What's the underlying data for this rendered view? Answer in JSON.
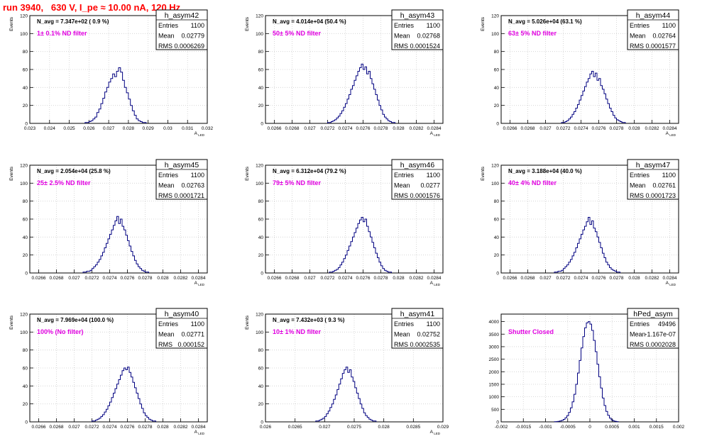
{
  "page_title": "run 3940,   630 V, I_pe ≈ 10.00 nA, 120 Hz",
  "chart_data": [
    {
      "type": "bar",
      "name": "h_asym42",
      "ylabel": "Events",
      "xlabel": "A_LED",
      "navg": "N_avg = 7.347e+02 ( 0.9 %)",
      "filter": "1± 0.1% ND filter",
      "stats": [
        [
          "Entries",
          "1100"
        ],
        [
          "Mean",
          "0.02779"
        ],
        [
          "RMS",
          "0.0006269"
        ]
      ],
      "ylim": [
        0,
        120
      ],
      "yticks": [
        0,
        20,
        40,
        60,
        80,
        100,
        120
      ],
      "xlim": [
        0.023,
        0.032
      ],
      "xticks": [
        [
          0.023,
          "0.023"
        ],
        [
          0.024,
          "0.024"
        ],
        [
          0.025,
          "0.025"
        ],
        [
          0.026,
          "0.026"
        ],
        [
          0.027,
          "0.027"
        ],
        [
          0.028,
          "0.028"
        ],
        [
          0.029,
          "0.029"
        ],
        [
          0.03,
          "0.03"
        ],
        [
          0.031,
          "0.031"
        ],
        [
          0.032,
          "0.032"
        ]
      ],
      "bins": {
        "lo": 0.0258,
        "width": 0.0001,
        "counts": [
          1,
          1,
          2,
          3,
          5,
          7,
          12,
          16,
          22,
          28,
          35,
          40,
          46,
          50,
          55,
          52,
          58,
          62,
          57,
          48,
          40,
          34,
          27,
          20,
          14,
          9,
          5,
          3,
          2,
          1,
          1
        ]
      }
    },
    {
      "type": "bar",
      "name": "h_asym43",
      "ylabel": "Events",
      "xlabel": "A_LED",
      "navg": "N_avg = 4.014e+04 (50.4 %)",
      "filter": "50± 5% ND filter",
      "stats": [
        [
          "Entries",
          "1100"
        ],
        [
          "Mean",
          "0.02768"
        ],
        [
          "RMS",
          "0.0001524"
        ]
      ],
      "ylim": [
        0,
        120
      ],
      "yticks": [
        0,
        20,
        40,
        60,
        80,
        100,
        120
      ],
      "xlim": [
        0.0265,
        0.0285
      ],
      "xticks": [
        [
          0.0266,
          "0.0266"
        ],
        [
          0.0268,
          "0.0268"
        ],
        [
          0.027,
          "0.027"
        ],
        [
          0.0272,
          "0.0272"
        ],
        [
          0.0274,
          "0.0274"
        ],
        [
          0.0276,
          "0.0276"
        ],
        [
          0.0278,
          "0.0278"
        ],
        [
          0.028,
          "0.028"
        ],
        [
          0.0282,
          "0.0282"
        ],
        [
          0.0284,
          "0.0284"
        ]
      ],
      "bins": {
        "lo": 0.0272,
        "width": 2e-05,
        "counts": [
          1,
          1,
          2,
          3,
          4,
          6,
          8,
          11,
          14,
          18,
          22,
          27,
          32,
          38,
          42,
          48,
          53,
          58,
          62,
          66,
          60,
          63,
          55,
          58,
          50,
          44,
          38,
          32,
          26,
          20,
          15,
          10,
          7,
          5,
          3,
          2,
          1,
          1
        ]
      }
    },
    {
      "type": "bar",
      "name": "h_asym44",
      "ylabel": "Events",
      "xlabel": "A_LED",
      "navg": "N_avg = 5.026e+04 (63.1 %)",
      "filter": "63± 5% ND filter",
      "stats": [
        [
          "Entries",
          "1100"
        ],
        [
          "Mean",
          "0.02764"
        ],
        [
          "RMS",
          "0.0001577"
        ]
      ],
      "ylim": [
        0,
        120
      ],
      "yticks": [
        0,
        20,
        40,
        60,
        80,
        100,
        120
      ],
      "xlim": [
        0.0265,
        0.0285
      ],
      "xticks": [
        [
          0.0266,
          "0.0266"
        ],
        [
          0.0268,
          "0.0268"
        ],
        [
          0.027,
          "0.027"
        ],
        [
          0.0272,
          "0.0272"
        ],
        [
          0.0274,
          "0.0274"
        ],
        [
          0.0276,
          "0.0276"
        ],
        [
          0.0278,
          "0.0278"
        ],
        [
          0.028,
          "0.028"
        ],
        [
          0.0282,
          "0.0282"
        ],
        [
          0.0284,
          "0.0284"
        ]
      ],
      "bins": {
        "lo": 0.02718,
        "width": 2e-05,
        "counts": [
          1,
          1,
          2,
          3,
          5,
          7,
          10,
          13,
          17,
          21,
          26,
          31,
          36,
          41,
          46,
          50,
          55,
          58,
          52,
          56,
          48,
          50,
          42,
          38,
          33,
          27,
          22,
          17,
          13,
          9,
          6,
          4,
          3,
          2,
          1,
          1
        ]
      }
    },
    {
      "type": "bar",
      "name": "h_asym45",
      "ylabel": "Events",
      "xlabel": "A_LED",
      "navg": "N_avg = 2.054e+04 (25.8 %)",
      "filter": "25± 2.5% ND filter",
      "stats": [
        [
          "Entries",
          "1100"
        ],
        [
          "Mean",
          "0.02763"
        ],
        [
          "RMS",
          "0.0001721"
        ]
      ],
      "ylim": [
        0,
        120
      ],
      "yticks": [
        0,
        20,
        40,
        60,
        80,
        100,
        120
      ],
      "xlim": [
        0.0265,
        0.0285
      ],
      "xticks": [
        [
          0.0266,
          "0.0266"
        ],
        [
          0.0268,
          "0.0268"
        ],
        [
          0.027,
          "0.027"
        ],
        [
          0.0272,
          "0.0272"
        ],
        [
          0.0274,
          "0.0274"
        ],
        [
          0.0276,
          "0.0276"
        ],
        [
          0.0278,
          "0.0278"
        ],
        [
          0.028,
          "0.028"
        ],
        [
          0.0282,
          "0.0282"
        ],
        [
          0.0284,
          "0.0284"
        ]
      ],
      "bins": {
        "lo": 0.0271,
        "width": 2e-05,
        "counts": [
          1,
          1,
          2,
          2,
          3,
          5,
          7,
          9,
          12,
          15,
          19,
          23,
          28,
          33,
          38,
          43,
          48,
          53,
          58,
          63,
          55,
          60,
          52,
          48,
          42,
          36,
          30,
          24,
          19,
          14,
          10,
          7,
          5,
          3,
          2,
          1,
          1
        ]
      }
    },
    {
      "type": "bar",
      "name": "h_asym46",
      "ylabel": "Events",
      "xlabel": "A_LED",
      "navg": "N_avg = 6.312e+04 (79.2 %)",
      "filter": "79± 5% ND filter",
      "stats": [
        [
          "Entries",
          "1100"
        ],
        [
          "Mean",
          "0.0277"
        ],
        [
          "RMS",
          "0.0001576"
        ]
      ],
      "ylim": [
        0,
        120
      ],
      "yticks": [
        0,
        20,
        40,
        60,
        80,
        100,
        120
      ],
      "xlim": [
        0.0265,
        0.0285
      ],
      "xticks": [
        [
          0.0266,
          "0.0266"
        ],
        [
          0.0268,
          "0.0268"
        ],
        [
          0.027,
          "0.027"
        ],
        [
          0.0272,
          "0.0272"
        ],
        [
          0.0274,
          "0.0274"
        ],
        [
          0.0276,
          "0.0276"
        ],
        [
          0.0278,
          "0.0278"
        ],
        [
          0.028,
          "0.028"
        ],
        [
          0.0282,
          "0.0282"
        ],
        [
          0.0284,
          "0.0284"
        ]
      ],
      "bins": {
        "lo": 0.02722,
        "width": 2e-05,
        "counts": [
          1,
          1,
          2,
          3,
          4,
          6,
          9,
          12,
          16,
          20,
          25,
          30,
          35,
          40,
          45,
          50,
          55,
          59,
          62,
          57,
          60,
          52,
          46,
          40,
          34,
          28,
          22,
          17,
          12,
          8,
          5,
          3,
          2,
          1,
          1
        ]
      }
    },
    {
      "type": "bar",
      "name": "h_asym47",
      "ylabel": "Events",
      "xlabel": "A_LED",
      "navg": "N_avg = 3.188e+04 (40.0 %)",
      "filter": "40± 4% ND filter",
      "stats": [
        [
          "Entries",
          "1100"
        ],
        [
          "Mean",
          "0.02761"
        ],
        [
          "RMS",
          "0.0001723"
        ]
      ],
      "ylim": [
        0,
        120
      ],
      "yticks": [
        0,
        20,
        40,
        60,
        80,
        100,
        120
      ],
      "xlim": [
        0.0265,
        0.0285
      ],
      "xticks": [
        [
          0.0266,
          "0.0266"
        ],
        [
          0.0268,
          "0.0268"
        ],
        [
          0.027,
          "0.027"
        ],
        [
          0.0272,
          "0.0272"
        ],
        [
          0.0274,
          "0.0274"
        ],
        [
          0.0276,
          "0.0276"
        ],
        [
          0.0278,
          "0.0278"
        ],
        [
          0.028,
          "0.028"
        ],
        [
          0.0282,
          "0.0282"
        ],
        [
          0.0284,
          "0.0284"
        ]
      ],
      "bins": {
        "lo": 0.0271,
        "width": 2e-05,
        "counts": [
          1,
          1,
          2,
          2,
          3,
          5,
          7,
          9,
          12,
          15,
          19,
          23,
          28,
          33,
          38,
          43,
          48,
          52,
          57,
          62,
          54,
          58,
          50,
          46,
          40,
          34,
          28,
          22,
          17,
          12,
          9,
          6,
          4,
          3,
          2,
          1,
          1
        ]
      }
    },
    {
      "type": "bar",
      "name": "h_asym40",
      "ylabel": "Events",
      "xlabel": "A_LED",
      "navg": "N_avg = 7.969e+04 (100.0 %)",
      "filter": "100% (No filter)",
      "stats": [
        [
          "Entries",
          "1100"
        ],
        [
          "Mean",
          "0.02771"
        ],
        [
          "RMS",
          "0.000152"
        ]
      ],
      "ylim": [
        0,
        120
      ],
      "yticks": [
        0,
        20,
        40,
        60,
        80,
        100,
        120
      ],
      "xlim": [
        0.0265,
        0.0285
      ],
      "xticks": [
        [
          0.0266,
          "0.0266"
        ],
        [
          0.0268,
          "0.0268"
        ],
        [
          0.027,
          "0.027"
        ],
        [
          0.0272,
          "0.0272"
        ],
        [
          0.0274,
          "0.0274"
        ],
        [
          0.0276,
          "0.0276"
        ],
        [
          0.0278,
          "0.0278"
        ],
        [
          0.028,
          "0.028"
        ],
        [
          0.0282,
          "0.0282"
        ],
        [
          0.0284,
          "0.0284"
        ]
      ],
      "bins": {
        "lo": 0.0272,
        "width": 2e-05,
        "counts": [
          1,
          1,
          2,
          3,
          4,
          6,
          8,
          11,
          14,
          18,
          22,
          27,
          32,
          37,
          42,
          47,
          52,
          57,
          60,
          58,
          61,
          55,
          50,
          44,
          38,
          32,
          26,
          20,
          15,
          10,
          7,
          5,
          3,
          2,
          1,
          1
        ]
      }
    },
    {
      "type": "bar",
      "name": "h_asym41",
      "ylabel": "Events",
      "xlabel": "A_LED",
      "navg": "N_avg = 7.432e+03 ( 9.3 %)",
      "filter": "10± 1% ND filter",
      "stats": [
        [
          "Entries",
          "1100"
        ],
        [
          "Mean",
          "0.02752"
        ],
        [
          "RMS",
          "0.0002535"
        ]
      ],
      "ylim": [
        0,
        120
      ],
      "yticks": [
        0,
        20,
        40,
        60,
        80,
        100,
        120
      ],
      "xlim": [
        0.026,
        0.029
      ],
      "xticks": [
        [
          0.026,
          "0.026"
        ],
        [
          0.0265,
          "0.0265"
        ],
        [
          0.027,
          "0.027"
        ],
        [
          0.0275,
          "0.0275"
        ],
        [
          0.028,
          "0.028"
        ],
        [
          0.0285,
          "0.0285"
        ],
        [
          0.029,
          "0.029"
        ]
      ],
      "bins": {
        "lo": 0.02685,
        "width": 3e-05,
        "counts": [
          1,
          1,
          2,
          3,
          4,
          6,
          9,
          12,
          16,
          20,
          25,
          30,
          36,
          42,
          48,
          54,
          58,
          61,
          55,
          58,
          50,
          45,
          38,
          32,
          26,
          20,
          15,
          10,
          7,
          5,
          3,
          2,
          1,
          1
        ]
      }
    },
    {
      "type": "bar",
      "name": "hPed_asym",
      "ylabel": "",
      "xlabel": "",
      "navg": "",
      "filter": "Shutter Closed",
      "stats": [
        [
          "Entries",
          "49496"
        ],
        [
          "Mean",
          "-1.167e-07"
        ],
        [
          "RMS",
          "0.0002028"
        ]
      ],
      "ylim": [
        0,
        4300
      ],
      "yticks": [
        0,
        500,
        1000,
        1500,
        2000,
        2500,
        3000,
        3500,
        4000
      ],
      "xlim": [
        -0.002,
        0.002
      ],
      "xticks": [
        [
          -0.002,
          "-0.002"
        ],
        [
          -0.0015,
          "-0.0015"
        ],
        [
          -0.001,
          "-0.001"
        ],
        [
          -0.0005,
          "-0.0005"
        ],
        [
          0,
          "0"
        ],
        [
          0.0005,
          "0.0005"
        ],
        [
          0.001,
          "0.001"
        ],
        [
          0.0015,
          "0.0015"
        ],
        [
          0.002,
          "0.002"
        ]
      ],
      "bins": {
        "lo": -0.0008,
        "width": 4e-05,
        "counts": [
          5,
          10,
          20,
          35,
          60,
          100,
          160,
          250,
          380,
          560,
          800,
          1100,
          1500,
          1950,
          2450,
          2950,
          3400,
          3750,
          3950,
          4000,
          3900,
          3650,
          3250,
          2800,
          2300,
          1800,
          1350,
          950,
          650,
          420,
          260,
          150,
          80,
          40,
          20,
          10
        ]
      }
    }
  ]
}
